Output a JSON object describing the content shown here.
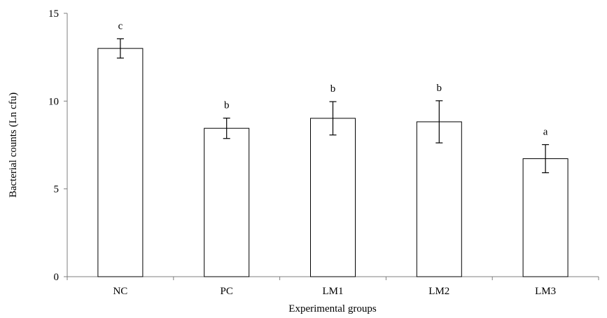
{
  "chart_data": {
    "type": "bar",
    "categories": [
      "NC",
      "PC",
      "LM1",
      "LM2",
      "LM3"
    ],
    "values": [
      13.0,
      8.45,
      9.02,
      8.82,
      6.72
    ],
    "error": [
      0.55,
      0.58,
      0.95,
      1.2,
      0.8
    ],
    "significance_labels": [
      "c",
      "b",
      "b",
      "b",
      "a"
    ],
    "title": "",
    "xlabel": "Experimental groups",
    "ylabel": "Bacterial counts (Ln cfu)",
    "ylim": [
      0,
      15
    ],
    "yticks": [
      0,
      5,
      10,
      15
    ],
    "grid": false,
    "legend": "none",
    "colors": {
      "bar_fill": "#ffffff",
      "bar_stroke": "#000000",
      "axis": "#7f7f7f"
    }
  }
}
